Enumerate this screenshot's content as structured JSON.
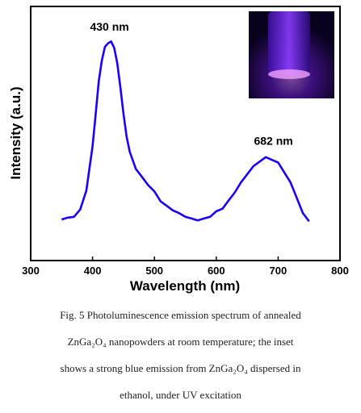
{
  "chart_data": {
    "type": "line",
    "xlabel": "Wavelength (nm)",
    "ylabel": "Intensity (a.u.)",
    "xlim": [
      300,
      800
    ],
    "xticks": [
      "300",
      "400",
      "500",
      "600",
      "700",
      "800"
    ],
    "yticks_shown": false,
    "grid": false,
    "line_color": "#1a00ff",
    "annotations": [
      {
        "text": "430 nm",
        "x": 430,
        "y": 1.0
      },
      {
        "text": "682 nm",
        "x": 682,
        "y": 0.36
      }
    ],
    "inset": {
      "description_shown": false
    },
    "series": [
      {
        "x": [
          350,
          360,
          370,
          380,
          390,
          400,
          405,
          410,
          415,
          420,
          425,
          430,
          435,
          440,
          445,
          450,
          455,
          460,
          470,
          480,
          490,
          500,
          510,
          520,
          530,
          540,
          550,
          560,
          570,
          580,
          590,
          600,
          610,
          620,
          630,
          640,
          650,
          660,
          670,
          680,
          690,
          700,
          710,
          720,
          730,
          740,
          750
        ],
        "y": [
          0.02,
          0.025,
          0.035,
          0.07,
          0.18,
          0.42,
          0.6,
          0.78,
          0.9,
          0.97,
          0.995,
          1.0,
          0.97,
          0.88,
          0.75,
          0.6,
          0.48,
          0.39,
          0.3,
          0.25,
          0.21,
          0.17,
          0.12,
          0.09,
          0.07,
          0.05,
          0.035,
          0.02,
          0.015,
          0.02,
          0.035,
          0.06,
          0.08,
          0.12,
          0.17,
          0.22,
          0.27,
          0.31,
          0.34,
          0.36,
          0.35,
          0.33,
          0.28,
          0.22,
          0.14,
          0.05,
          0.01
        ]
      }
    ]
  },
  "caption": {
    "lines": [
      "Fig. 5 Photoluminescence  emission  spectrum  of  annealed",
      "ZnGa₂O₄ nanopowders  at room temperature;  the inset",
      "shows a strong blue  emission  from ZnGa₂O₄ dispersed in",
      "ethanol,  under  UV excitation"
    ]
  }
}
